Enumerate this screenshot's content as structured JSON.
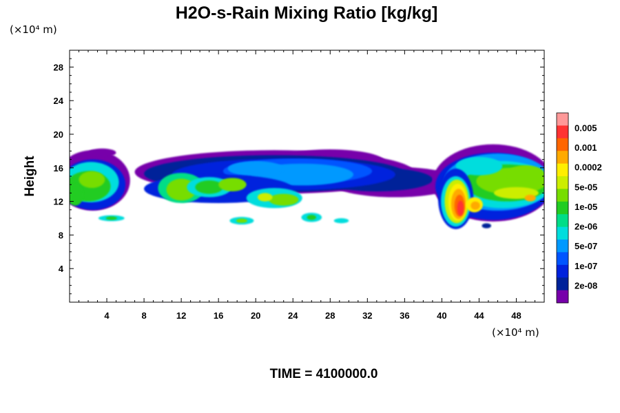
{
  "chart_data": {
    "type": "heatmap",
    "title": "H2O-s-Rain Mixing Ratio [kg/kg]",
    "xlabel": "",
    "ylabel": "Height",
    "x_unit_label": "(×10⁴ m)",
    "y_unit_label": "(×10⁴ m)",
    "x_ticks": [
      4,
      8,
      12,
      16,
      20,
      24,
      28,
      32,
      36,
      40,
      44,
      48
    ],
    "y_ticks": [
      4,
      8,
      12,
      16,
      20,
      24,
      28
    ],
    "xlim": [
      0,
      51
    ],
    "ylim": [
      0,
      30
    ],
    "footer": "TIME = 4100000.0",
    "colorbar": {
      "labels": [
        "0.005",
        "0.001",
        "0.0002",
        "5e-05",
        "1e-05",
        "2e-06",
        "5e-07",
        "1e-07",
        "2e-08"
      ],
      "colors": [
        "#ff9999",
        "#ff3333",
        "#ff6600",
        "#ffaa00",
        "#ffee00",
        "#ccee00",
        "#77dd00",
        "#22cc22",
        "#00dd88",
        "#00dddd",
        "#0099ff",
        "#0055ff",
        "#0022dd",
        "#002299",
        "#7700aa"
      ]
    },
    "regions": [
      {
        "name": "left-edge cloud",
        "x": [
          0,
          6
        ],
        "y": [
          10.5,
          19
        ],
        "peak_level": "5e-05"
      },
      {
        "name": "upper anvil layer",
        "x": [
          7,
          40
        ],
        "y": [
          11,
          18.5
        ],
        "peak_level": "5e-07"
      },
      {
        "name": "mid cloud band",
        "x": [
          8,
          26
        ],
        "y": [
          11,
          16
        ],
        "peak_level": "5e-05"
      },
      {
        "name": "low cloud fragments",
        "x": [
          3,
          30
        ],
        "y": [
          9,
          11
        ],
        "peak_level": "1e-05"
      },
      {
        "name": "right convective core",
        "x": [
          38,
          51
        ],
        "y": [
          9,
          19
        ],
        "peak_level": "0.005"
      }
    ]
  }
}
